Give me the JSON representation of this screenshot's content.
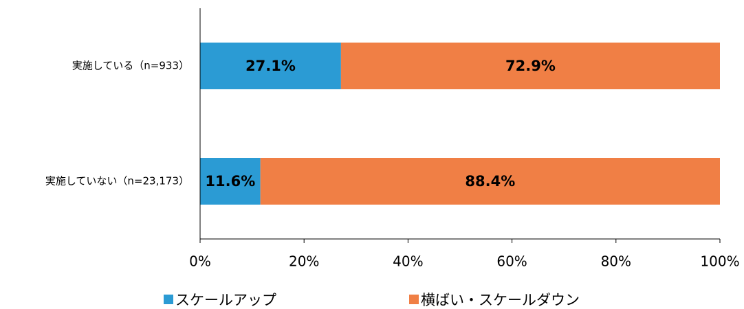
{
  "chart_data": {
    "type": "stacked_bar_horizontal",
    "categories": [
      "実施している（n=933）",
      "実施していない（n=23,173）"
    ],
    "series": [
      {
        "name": "スケールアップ",
        "color": "#2b9bd4",
        "values": [
          27.1,
          11.6
        ],
        "value_labels": [
          "27.1%",
          "11.6%"
        ]
      },
      {
        "name": "横ばい・スケールダウン",
        "color": "#f07f45",
        "values": [
          72.9,
          88.4
        ],
        "value_labels": [
          "72.9%",
          "88.4%"
        ]
      }
    ],
    "xlim": [
      0,
      100
    ],
    "xticks": [
      {
        "value": 0,
        "label": "0%"
      },
      {
        "value": 20,
        "label": "20%"
      },
      {
        "value": 40,
        "label": "40%"
      },
      {
        "value": 60,
        "label": "60%"
      },
      {
        "value": 80,
        "label": "80%"
      },
      {
        "value": 100,
        "label": "100%"
      }
    ],
    "legend": "bottom"
  }
}
